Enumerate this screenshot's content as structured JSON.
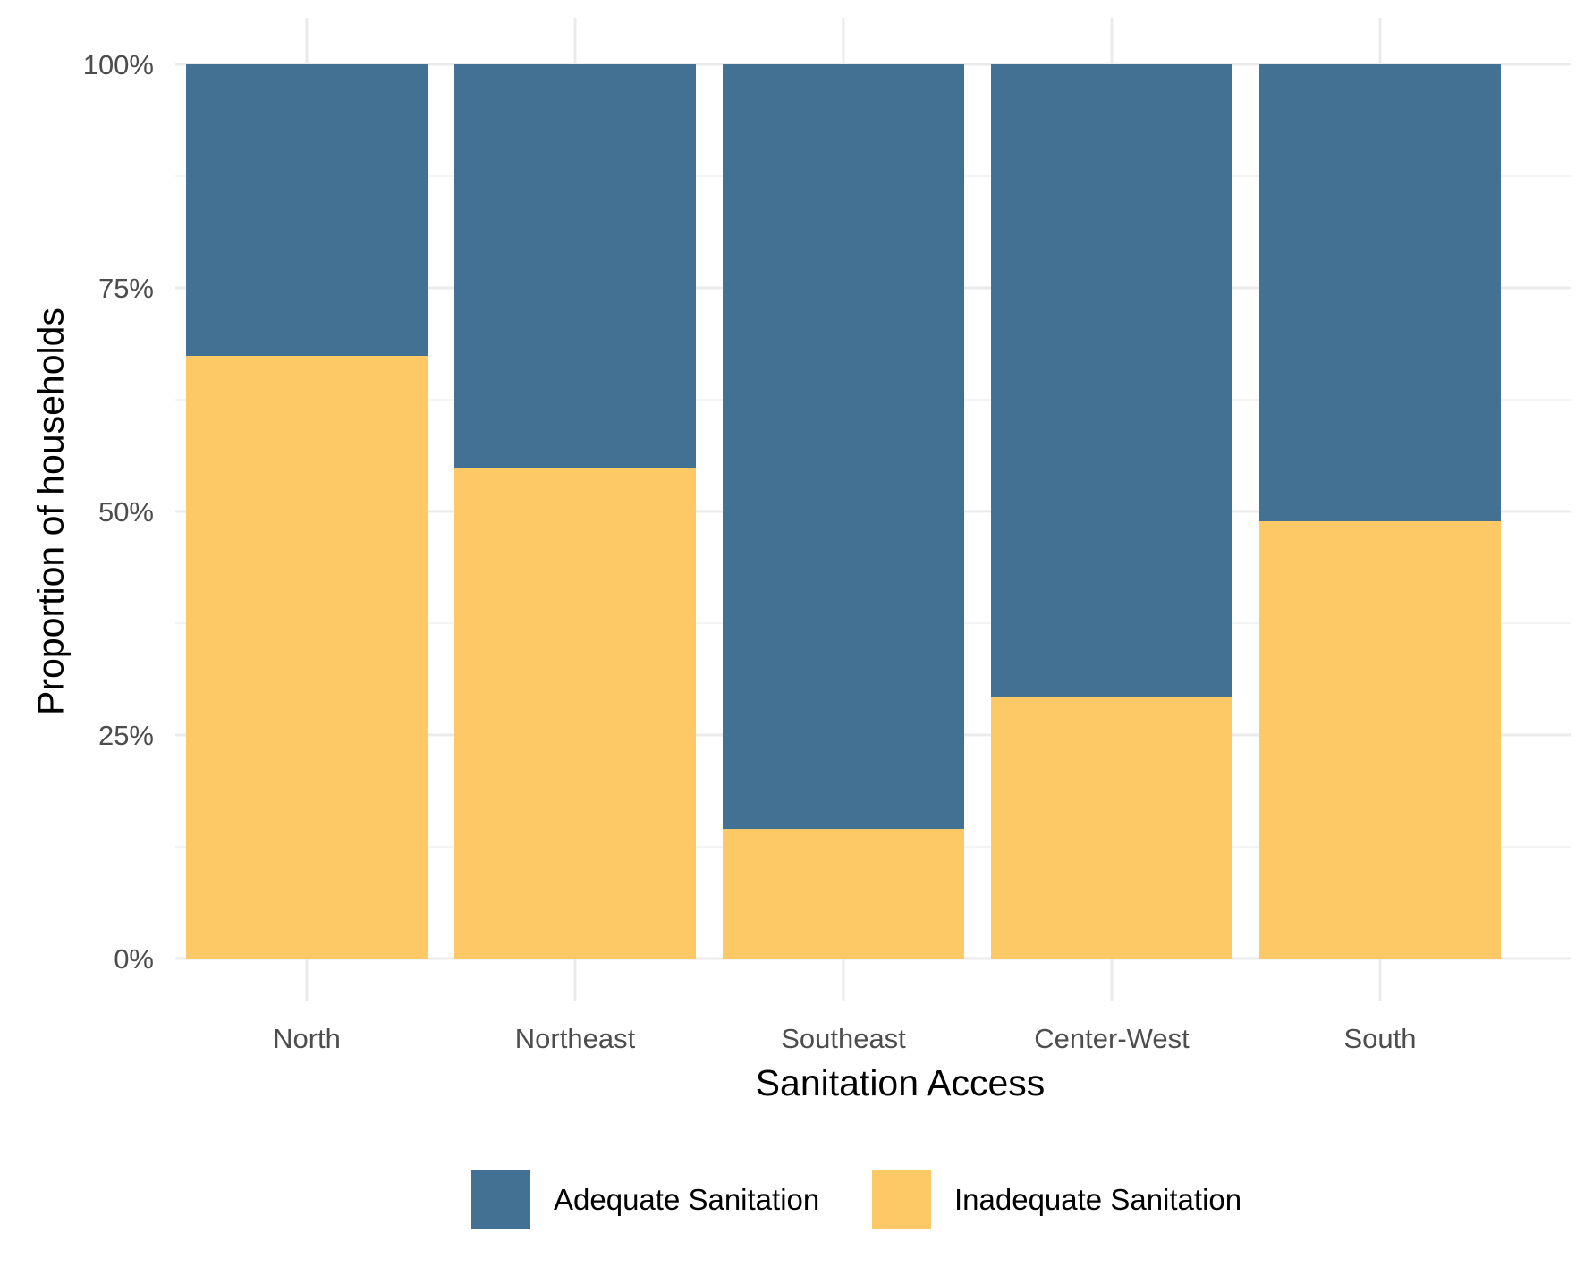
{
  "chart_data": {
    "type": "bar",
    "stacked": true,
    "xlabel": "Sanitation Access",
    "ylabel": "Proportion of households",
    "ylim": [
      0,
      1
    ],
    "yticks": [
      0,
      0.25,
      0.5,
      0.75,
      1
    ],
    "ytick_labels": [
      "0%",
      "25%",
      "50%",
      "75%",
      "100%"
    ],
    "grid": true,
    "legend_position": "bottom",
    "categories": [
      "North",
      "Northeast",
      "Southeast",
      "Center-West",
      "South"
    ],
    "series": [
      {
        "name": "Inadequate Sanitation",
        "color": "#FDC967",
        "values": [
          0.674,
          0.549,
          0.145,
          0.293,
          0.489
        ]
      },
      {
        "name": "Adequate Sanitation",
        "color": "#437194",
        "values": [
          0.326,
          0.451,
          0.855,
          0.707,
          0.511
        ]
      }
    ],
    "legend_order": [
      "Adequate Sanitation",
      "Inadequate Sanitation"
    ]
  }
}
